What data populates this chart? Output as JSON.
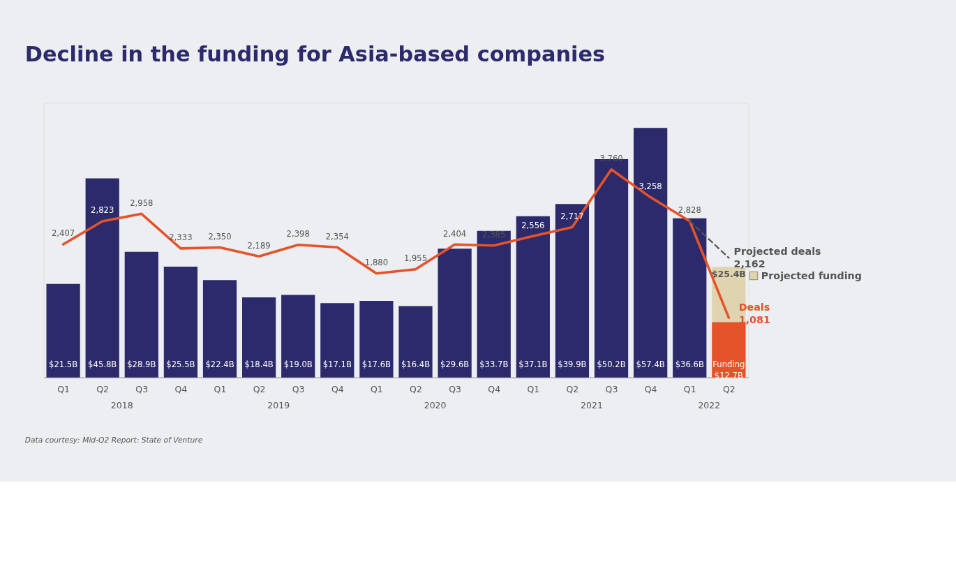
{
  "chart_data": {
    "type": "bar",
    "title": "Decline in the funding for Asia-based companies",
    "categories": [
      "Q1",
      "Q2",
      "Q3",
      "Q4",
      "Q1",
      "Q2",
      "Q3",
      "Q4",
      "Q1",
      "Q2",
      "Q3",
      "Q4",
      "Q1",
      "Q2",
      "Q3",
      "Q4",
      "Q1",
      "Q2"
    ],
    "series": [
      {
        "name": "Funding",
        "colors": [
          "#2c2a6b",
          "#2c2a6b",
          "#2c2a6b",
          "#2c2a6b",
          "#2c2a6b",
          "#2c2a6b",
          "#2c2a6b",
          "#2c2a6b",
          "#2c2a6b",
          "#2c2a6b",
          "#2c2a6b",
          "#2c2a6b",
          "#2c2a6b",
          "#2c2a6b",
          "#2c2a6b",
          "#2c2a6b",
          "#2c2a6b",
          "#e4532a"
        ],
        "values": [
          21.5,
          45.8,
          28.9,
          25.5,
          22.4,
          18.4,
          19.0,
          17.1,
          17.6,
          16.4,
          29.6,
          33.7,
          37.1,
          39.9,
          50.2,
          57.4,
          36.6,
          12.7
        ],
        "value_labels": [
          "$21.5B",
          "$45.8B",
          "$28.9B",
          "$25.5B",
          "$22.4B",
          "$18.4B",
          "$19.0B",
          "$17.1B",
          "$17.6B",
          "$16.4B",
          "$29.6B",
          "$33.7B",
          "$37.1B",
          "$39.9B",
          "$50.2B",
          "$57.4B",
          "$36.6B",
          "$12.7B"
        ]
      },
      {
        "name": "Projected funding",
        "color": "#e0d4b0",
        "values": [
          null,
          null,
          null,
          null,
          null,
          null,
          null,
          null,
          null,
          null,
          null,
          null,
          null,
          null,
          null,
          null,
          null,
          25.4
        ],
        "value_labels": [
          null,
          null,
          null,
          null,
          null,
          null,
          null,
          null,
          null,
          null,
          null,
          null,
          null,
          null,
          null,
          null,
          null,
          "$25.4B"
        ]
      },
      {
        "name": "Deals",
        "type": "line",
        "axis": "y2",
        "color": "#e4532a",
        "line_style": "solid",
        "values": [
          2407,
          2823,
          2958,
          2333,
          2350,
          2189,
          2398,
          2354,
          1880,
          1955,
          2404,
          2385,
          2556,
          2717,
          3760,
          3258,
          2828,
          1081
        ],
        "value_labels": [
          "2,407",
          "2,823",
          "2,958",
          "2,333",
          "2,350",
          "2,189",
          "2,398",
          "2,354",
          "1,880",
          "1,955",
          "2,404",
          "2,385",
          "2,556",
          "2,717",
          "3,760",
          "3,258",
          "2,828",
          "1,081"
        ]
      },
      {
        "name": "Projected deals",
        "type": "line",
        "axis": "y2",
        "color": "#555555",
        "line_style": "dashed",
        "values": [
          null,
          null,
          null,
          null,
          null,
          null,
          null,
          null,
          null,
          null,
          null,
          null,
          null,
          null,
          null,
          null,
          2828,
          2162
        ],
        "value_labels": [
          null,
          null,
          null,
          null,
          null,
          null,
          null,
          null,
          null,
          null,
          null,
          null,
          null,
          null,
          null,
          null,
          null,
          "2,162"
        ]
      }
    ],
    "annotations": [
      "2018",
      "2019",
      "2020",
      "2021",
      "2022",
      "Data courtesy: Mid-Q2 Report: State of Venture"
    ]
  }
}
